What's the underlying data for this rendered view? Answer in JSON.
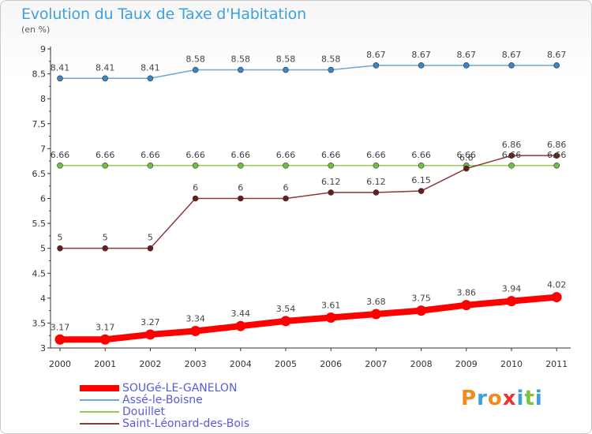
{
  "title": "Evolution du Taux de Taxe d'Habitation",
  "subtitle": "(en %)",
  "logo": {
    "text": "Proxiti",
    "letter_colors": [
      "#f08a1c",
      "#3aa0dd",
      "#f08a1c",
      "#e33",
      "#3aa0dd",
      "#7cc242",
      "#3aa0dd"
    ]
  },
  "chart_data": {
    "type": "line",
    "x": [
      "2000",
      "2001",
      "2002",
      "2003",
      "2004",
      "2005",
      "2006",
      "2007",
      "2008",
      "2009",
      "2010",
      "2011"
    ],
    "ylim": [
      3,
      9
    ],
    "yticks": [
      "3",
      "3.5",
      "4",
      "4.5",
      "5",
      "5.5",
      "6",
      "6.5",
      "7",
      "7.5",
      "8",
      "8.5",
      "9"
    ],
    "grid": false,
    "legend": "bottom-left",
    "series": [
      {
        "name": "SOUGé-LE-GANELON",
        "color": "#ff0000",
        "values": [
          3.17,
          3.17,
          3.27,
          3.34,
          3.44,
          3.54,
          3.61,
          3.68,
          3.75,
          3.86,
          3.94,
          4.02
        ],
        "labels": [
          "3.17",
          "3.17",
          "3.27",
          "3.34",
          "3.44",
          "3.54",
          "3.61",
          "3.68",
          "3.75",
          "3.86",
          "3.94",
          "4.02"
        ]
      },
      {
        "name": "Assé-le-Boisne",
        "color": "#6ea6d8",
        "values": [
          8.41,
          8.41,
          8.41,
          8.58,
          8.58,
          8.58,
          8.58,
          8.67,
          8.67,
          8.67,
          8.67,
          8.67
        ],
        "labels": [
          "8.41",
          "8.41",
          "8.41",
          "8.58",
          "8.58",
          "8.58",
          "8.58",
          "8.67",
          "8.67",
          "8.67",
          "8.67",
          "8.67"
        ]
      },
      {
        "name": "Douillet",
        "color": "#8fd14f",
        "values": [
          6.66,
          6.66,
          6.66,
          6.66,
          6.66,
          6.66,
          6.66,
          6.66,
          6.66,
          6.66,
          6.66,
          6.66
        ],
        "labels": [
          "6.66",
          "6.66",
          "6.66",
          "6.66",
          "6.66",
          "6.66",
          "6.66",
          "6.66",
          "6.66",
          "6.66",
          "6.66",
          "6.66"
        ]
      },
      {
        "name": "Saint-Léonard-des-Bois",
        "color": "#8b3a3a",
        "values": [
          5,
          5,
          5,
          6,
          6,
          6,
          6.12,
          6.12,
          6.15,
          6.6,
          6.86,
          6.86
        ],
        "labels": [
          "5",
          "5",
          "5",
          "6",
          "6",
          "6",
          "6.12",
          "6.12",
          "6.15",
          "6.6",
          "6.86",
          "6.86"
        ]
      }
    ]
  }
}
